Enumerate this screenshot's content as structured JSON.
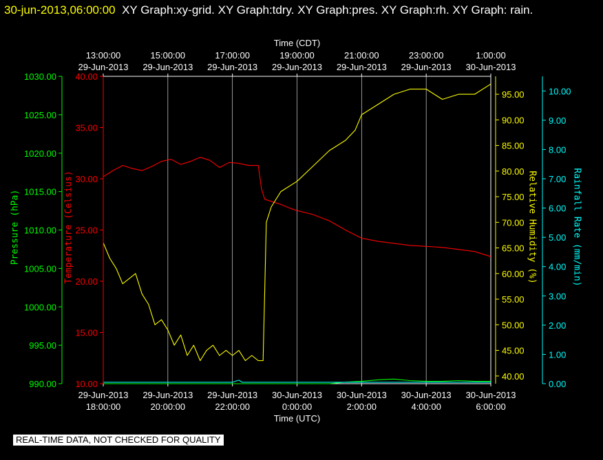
{
  "header": {
    "timestamp": "30-jun-2013,06:00:00",
    "graphs": "XY Graph:xy-grid.  XY Graph:tdry.  XY Graph:pres.  XY Graph:rh.  XY Graph: rain."
  },
  "footer_note": "REAL-TIME DATA, NOT CHECKED FOR QUALITY",
  "colors": {
    "temperature": "#ff0000",
    "humidity": "#ffff00",
    "pressure": "#00ff00",
    "rain": "#00ffff",
    "grid": "#ffffff"
  },
  "chart_data": {
    "type": "line",
    "grid": true,
    "x_top": {
      "label": "Time (CDT)",
      "ticks": [
        [
          "13:00:00",
          "29-Jun-2013"
        ],
        [
          "15:00:00",
          "29-Jun-2013"
        ],
        [
          "17:00:00",
          "29-Jun-2013"
        ],
        [
          "19:00:00",
          "29-Jun-2013"
        ],
        [
          "21:00:00",
          "29-Jun-2013"
        ],
        [
          "23:00:00",
          "29-Jun-2013"
        ],
        [
          "1:00:00",
          "30-Jun-2013"
        ]
      ]
    },
    "x_bottom": {
      "label": "Time (UTC)",
      "ticks": [
        [
          "29-Jun-2013",
          "18:00:00"
        ],
        [
          "29-Jun-2013",
          "20:00:00"
        ],
        [
          "29-Jun-2013",
          "22:00:00"
        ],
        [
          "30-Jun-2013",
          "0:00:00"
        ],
        [
          "30-Jun-2013",
          "2:00:00"
        ],
        [
          "30-Jun-2013",
          "4:00:00"
        ],
        [
          "30-Jun-2013",
          "6:00:00"
        ]
      ],
      "hours_range": [
        18,
        30
      ]
    },
    "axes": {
      "pressure": {
        "label": "Pressure (hPa)",
        "range": [
          990,
          1030
        ],
        "ticks": [
          "990.00",
          "995.00",
          "1000.00",
          "1005.00",
          "1010.00",
          "1015.00",
          "1020.00",
          "1025.00",
          "1030.00"
        ]
      },
      "temperature": {
        "label": "Temperature (Celsius)",
        "range": [
          10,
          40
        ],
        "ticks": [
          "10.00",
          "15.00",
          "20.00",
          "25.00",
          "30.00",
          "35.00",
          "40.00"
        ]
      },
      "humidity": {
        "label": "Relative Humidity (%)",
        "range": [
          38.5,
          98.5
        ],
        "ticks": [
          "40.00",
          "45.00",
          "50.00",
          "55.00",
          "60.00",
          "65.00",
          "70.00",
          "75.00",
          "80.00",
          "85.00",
          "90.00",
          "95.00"
        ]
      },
      "rain": {
        "label": "Rainfall Rate (mm/min)",
        "range": [
          0,
          10.5
        ],
        "ticks": [
          "0.00",
          "1.00",
          "2.00",
          "3.00",
          "4.00",
          "5.00",
          "6.00",
          "7.00",
          "8.00",
          "9.00",
          "10.00"
        ]
      }
    },
    "series": [
      {
        "name": "Temperature (Celsius)",
        "axis": "temperature",
        "x": [
          18,
          18.3,
          18.6,
          18.9,
          19.2,
          19.5,
          19.8,
          20.1,
          20.4,
          20.7,
          21,
          21.3,
          21.6,
          21.9,
          22.2,
          22.5,
          22.8,
          22.9,
          23.0,
          23.2,
          23.5,
          23.8,
          24,
          24.5,
          25,
          25.5,
          26,
          26.5,
          27,
          27.5,
          28,
          28.5,
          29,
          29.5,
          30
        ],
        "values": [
          30.2,
          30.8,
          31.3,
          31.0,
          30.8,
          31.2,
          31.7,
          31.9,
          31.4,
          31.7,
          32.1,
          31.8,
          31.1,
          31.6,
          31.5,
          31.3,
          31.3,
          29.0,
          28.0,
          27.8,
          27.5,
          27.1,
          26.9,
          26.5,
          25.9,
          25.0,
          24.2,
          23.9,
          23.7,
          23.5,
          23.4,
          23.3,
          23.1,
          22.9,
          22.4
        ]
      },
      {
        "name": "Relative Humidity (%)",
        "axis": "humidity",
        "x": [
          18,
          18.2,
          18.4,
          18.6,
          18.8,
          19,
          19.2,
          19.4,
          19.6,
          19.8,
          20,
          20.2,
          20.4,
          20.6,
          20.8,
          21,
          21.2,
          21.4,
          21.6,
          21.8,
          22,
          22.2,
          22.4,
          22.6,
          22.8,
          22.95,
          23.05,
          23.2,
          23.5,
          24,
          24.5,
          25,
          25.5,
          25.8,
          26,
          26.5,
          27,
          27.5,
          28,
          28.5,
          29,
          29.5,
          30
        ],
        "values": [
          66,
          63,
          61,
          58,
          59,
          60,
          56,
          54,
          50,
          51,
          49,
          46,
          48,
          44,
          46,
          43,
          45,
          46,
          44,
          45,
          44,
          45,
          43,
          44,
          43,
          43,
          70,
          73,
          76,
          78,
          81,
          84,
          86,
          88,
          91,
          93,
          95,
          96,
          96,
          94,
          95,
          95,
          97
        ]
      },
      {
        "name": "Pressure (hPa)",
        "axis": "pressure",
        "x": [
          18,
          20,
          22,
          23,
          24,
          25,
          25.5,
          26,
          26.5,
          27,
          27.5,
          28,
          28.5,
          29,
          29.5,
          30
        ],
        "values": [
          990.0,
          990.0,
          990.0,
          990.0,
          990.0,
          990.0,
          990.2,
          990.3,
          990.5,
          990.6,
          990.4,
          990.3,
          990.3,
          990.4,
          990.3,
          990.3
        ]
      },
      {
        "name": "Rainfall Rate (mm/min)",
        "axis": "rain",
        "x": [
          18,
          20,
          22,
          22.2,
          22.3,
          22.4,
          24,
          26,
          28,
          30
        ],
        "values": [
          0.05,
          0.05,
          0.05,
          0.12,
          0.05,
          0.05,
          0.05,
          0.05,
          0.05,
          0.05
        ]
      }
    ]
  }
}
